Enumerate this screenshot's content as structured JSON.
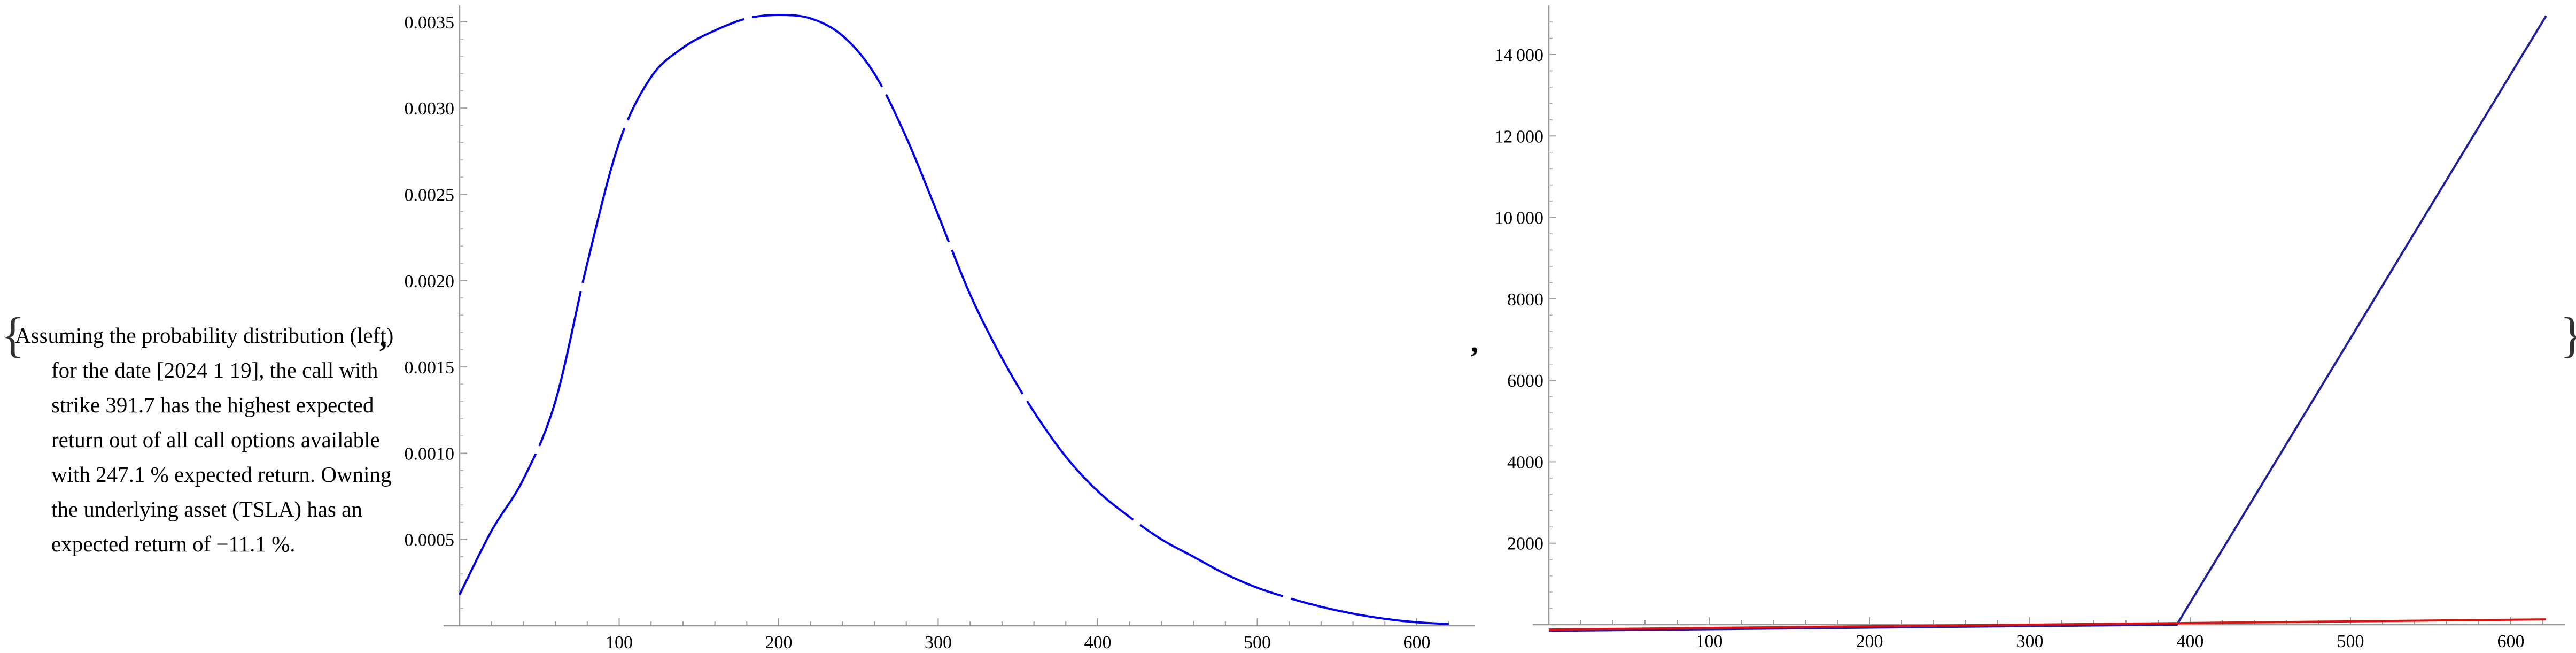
{
  "text": {
    "description": "Assuming the probability distribution (left) for the date [2024 1 19], the call with strike 391.7 has the highest expected return out of all call options available with 247.1 % expected return. Owning the underlying asset (TSLA) has an expected return of −11.1 %.",
    "open_brace": "{",
    "close_brace": "}",
    "separator": ","
  },
  "chart_data": [
    {
      "type": "line",
      "title": "",
      "xlabel": "",
      "ylabel": "",
      "xlim": [
        0,
        620
      ],
      "ylim": [
        0,
        0.0036
      ],
      "x_ticks": [
        100,
        200,
        300,
        400,
        500,
        600
      ],
      "y_ticks": [
        0.0005,
        0.001,
        0.0015,
        0.002,
        0.0025,
        0.003,
        0.0035
      ],
      "y_tick_labels": [
        "0.0005",
        "0.0010",
        "0.0015",
        "0.0020",
        "0.0025",
        "0.0030",
        "0.0035"
      ],
      "grid": false,
      "legend": "none",
      "series": [
        {
          "color": "#0000ee",
          "style": "dashed-gaps",
          "x": [
            0,
            20,
            40,
            60,
            80,
            100,
            120,
            140,
            160,
            180,
            200,
            220,
            240,
            260,
            280,
            300,
            320,
            340,
            360,
            380,
            400,
            420,
            440,
            460,
            480,
            500,
            520,
            540,
            560,
            580,
            600,
            620
          ],
          "y": [
            0.00018,
            0.00055,
            0.00085,
            0.0013,
            0.0021,
            0.0028,
            0.00318,
            0.00335,
            0.00345,
            0.00352,
            0.00354,
            0.00352,
            0.00342,
            0.0032,
            0.00283,
            0.00238,
            0.00192,
            0.00155,
            0.00124,
            0.00098,
            0.00078,
            0.00063,
            0.0005,
            0.0004,
            0.0003,
            0.00022,
            0.00016,
            0.00011,
            7e-05,
            4e-05,
            2e-05,
            1e-05
          ]
        }
      ]
    },
    {
      "type": "line",
      "title": "",
      "xlabel": "",
      "ylabel": "",
      "xlim": [
        0,
        630
      ],
      "ylim": [
        0,
        15200
      ],
      "x_ticks": [
        100,
        200,
        300,
        400,
        500,
        600
      ],
      "y_ticks": [
        2000,
        4000,
        6000,
        8000,
        10000,
        12000,
        14000
      ],
      "y_tick_labels": [
        "2000",
        "4000",
        "6000",
        "8000",
        "10 000",
        "12 000",
        "14 000"
      ],
      "grid": false,
      "legend": "none",
      "series": [
        {
          "color": "#2020a0",
          "x": [
            0,
            391.7,
            622
          ],
          "y": [
            -150,
            0,
            14950
          ]
        },
        {
          "color": "#dd1111",
          "x": [
            0,
            622
          ],
          "y": [
            -120,
            130
          ]
        }
      ]
    }
  ]
}
